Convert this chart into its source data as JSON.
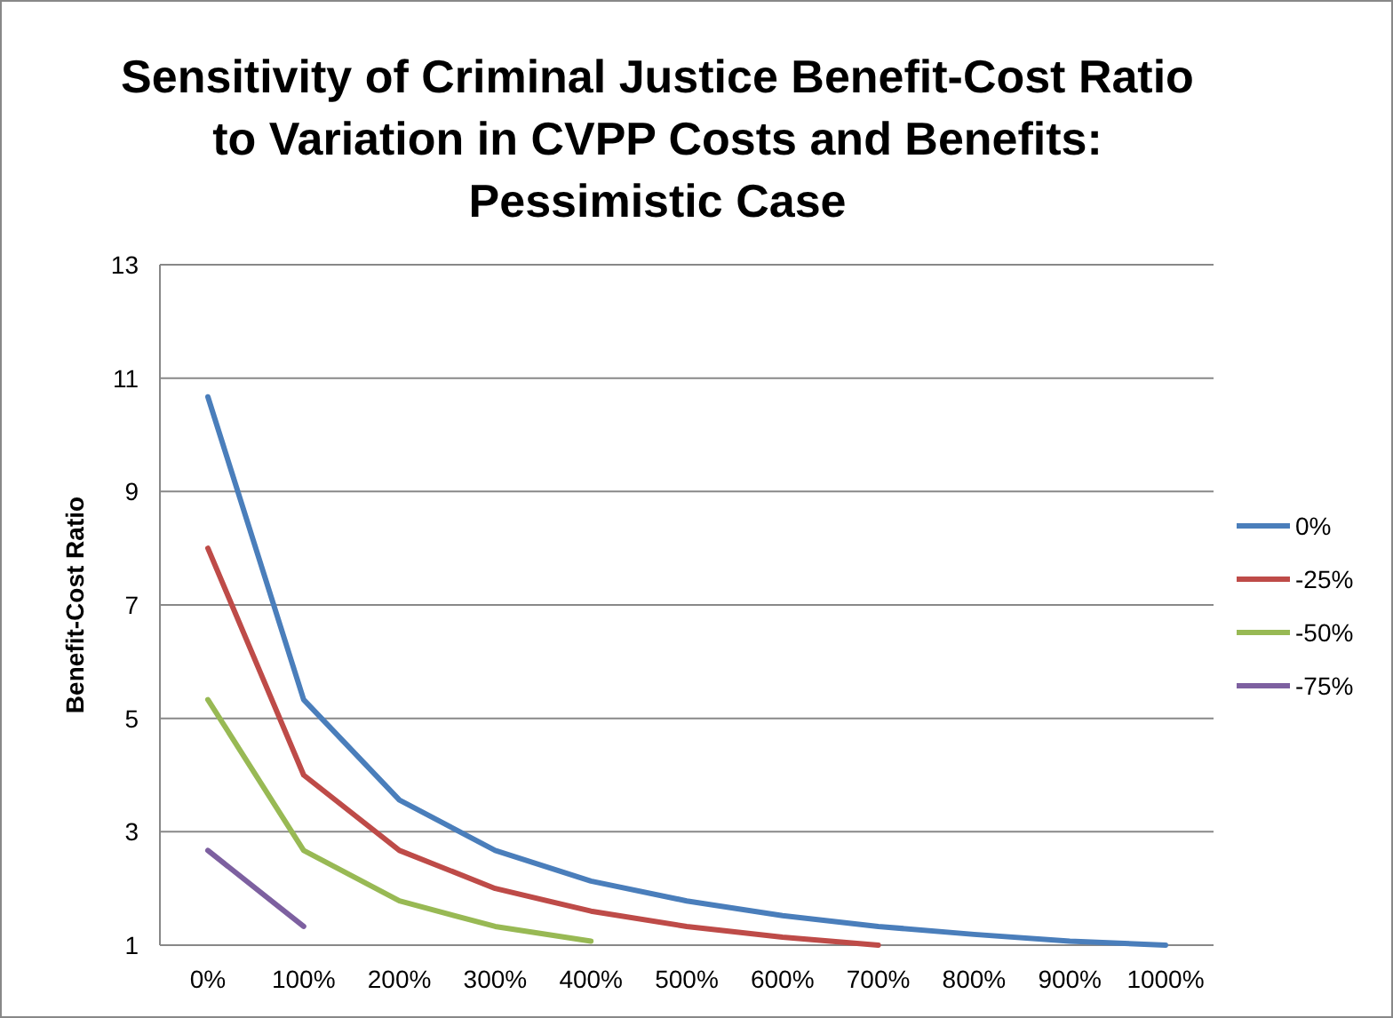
{
  "chart_data": {
    "type": "line",
    "title": "Sensitivity of Criminal Justice Benefit-Cost Ratio\nto Variation in CVPP Costs and Benefits:\nPessimistic Case",
    "ylabel": "Benefit-Cost Ratio",
    "categories": [
      "0%",
      "100%",
      "200%",
      "300%",
      "400%",
      "500%",
      "600%",
      "700%",
      "800%",
      "900%",
      "1000%"
    ],
    "series": [
      {
        "name": "0%",
        "color": "#4a7ebb",
        "values": [
          10.67,
          5.33,
          3.56,
          2.67,
          2.13,
          1.78,
          1.52,
          1.33,
          1.19,
          1.07,
          1.0
        ]
      },
      {
        "name": "-25%",
        "color": "#be4b48",
        "values": [
          8,
          4,
          2.67,
          2,
          1.6,
          1.33,
          1.14,
          1.0,
          null,
          null,
          null
        ]
      },
      {
        "name": "-50%",
        "color": "#98b954",
        "values": [
          5.33,
          2.67,
          1.78,
          1.33,
          1.07,
          null,
          null,
          null,
          null,
          null,
          null
        ]
      },
      {
        "name": "-75%",
        "color": "#7d60a0",
        "values": [
          2.67,
          1.33,
          null,
          null,
          null,
          null,
          null,
          null,
          null,
          null,
          null
        ]
      }
    ],
    "ylim": [
      1,
      13
    ],
    "yticks": [
      1,
      3,
      5,
      7,
      9,
      11,
      13
    ],
    "grid": "y",
    "legend": "right",
    "marker": "none",
    "line_style": "solid"
  }
}
